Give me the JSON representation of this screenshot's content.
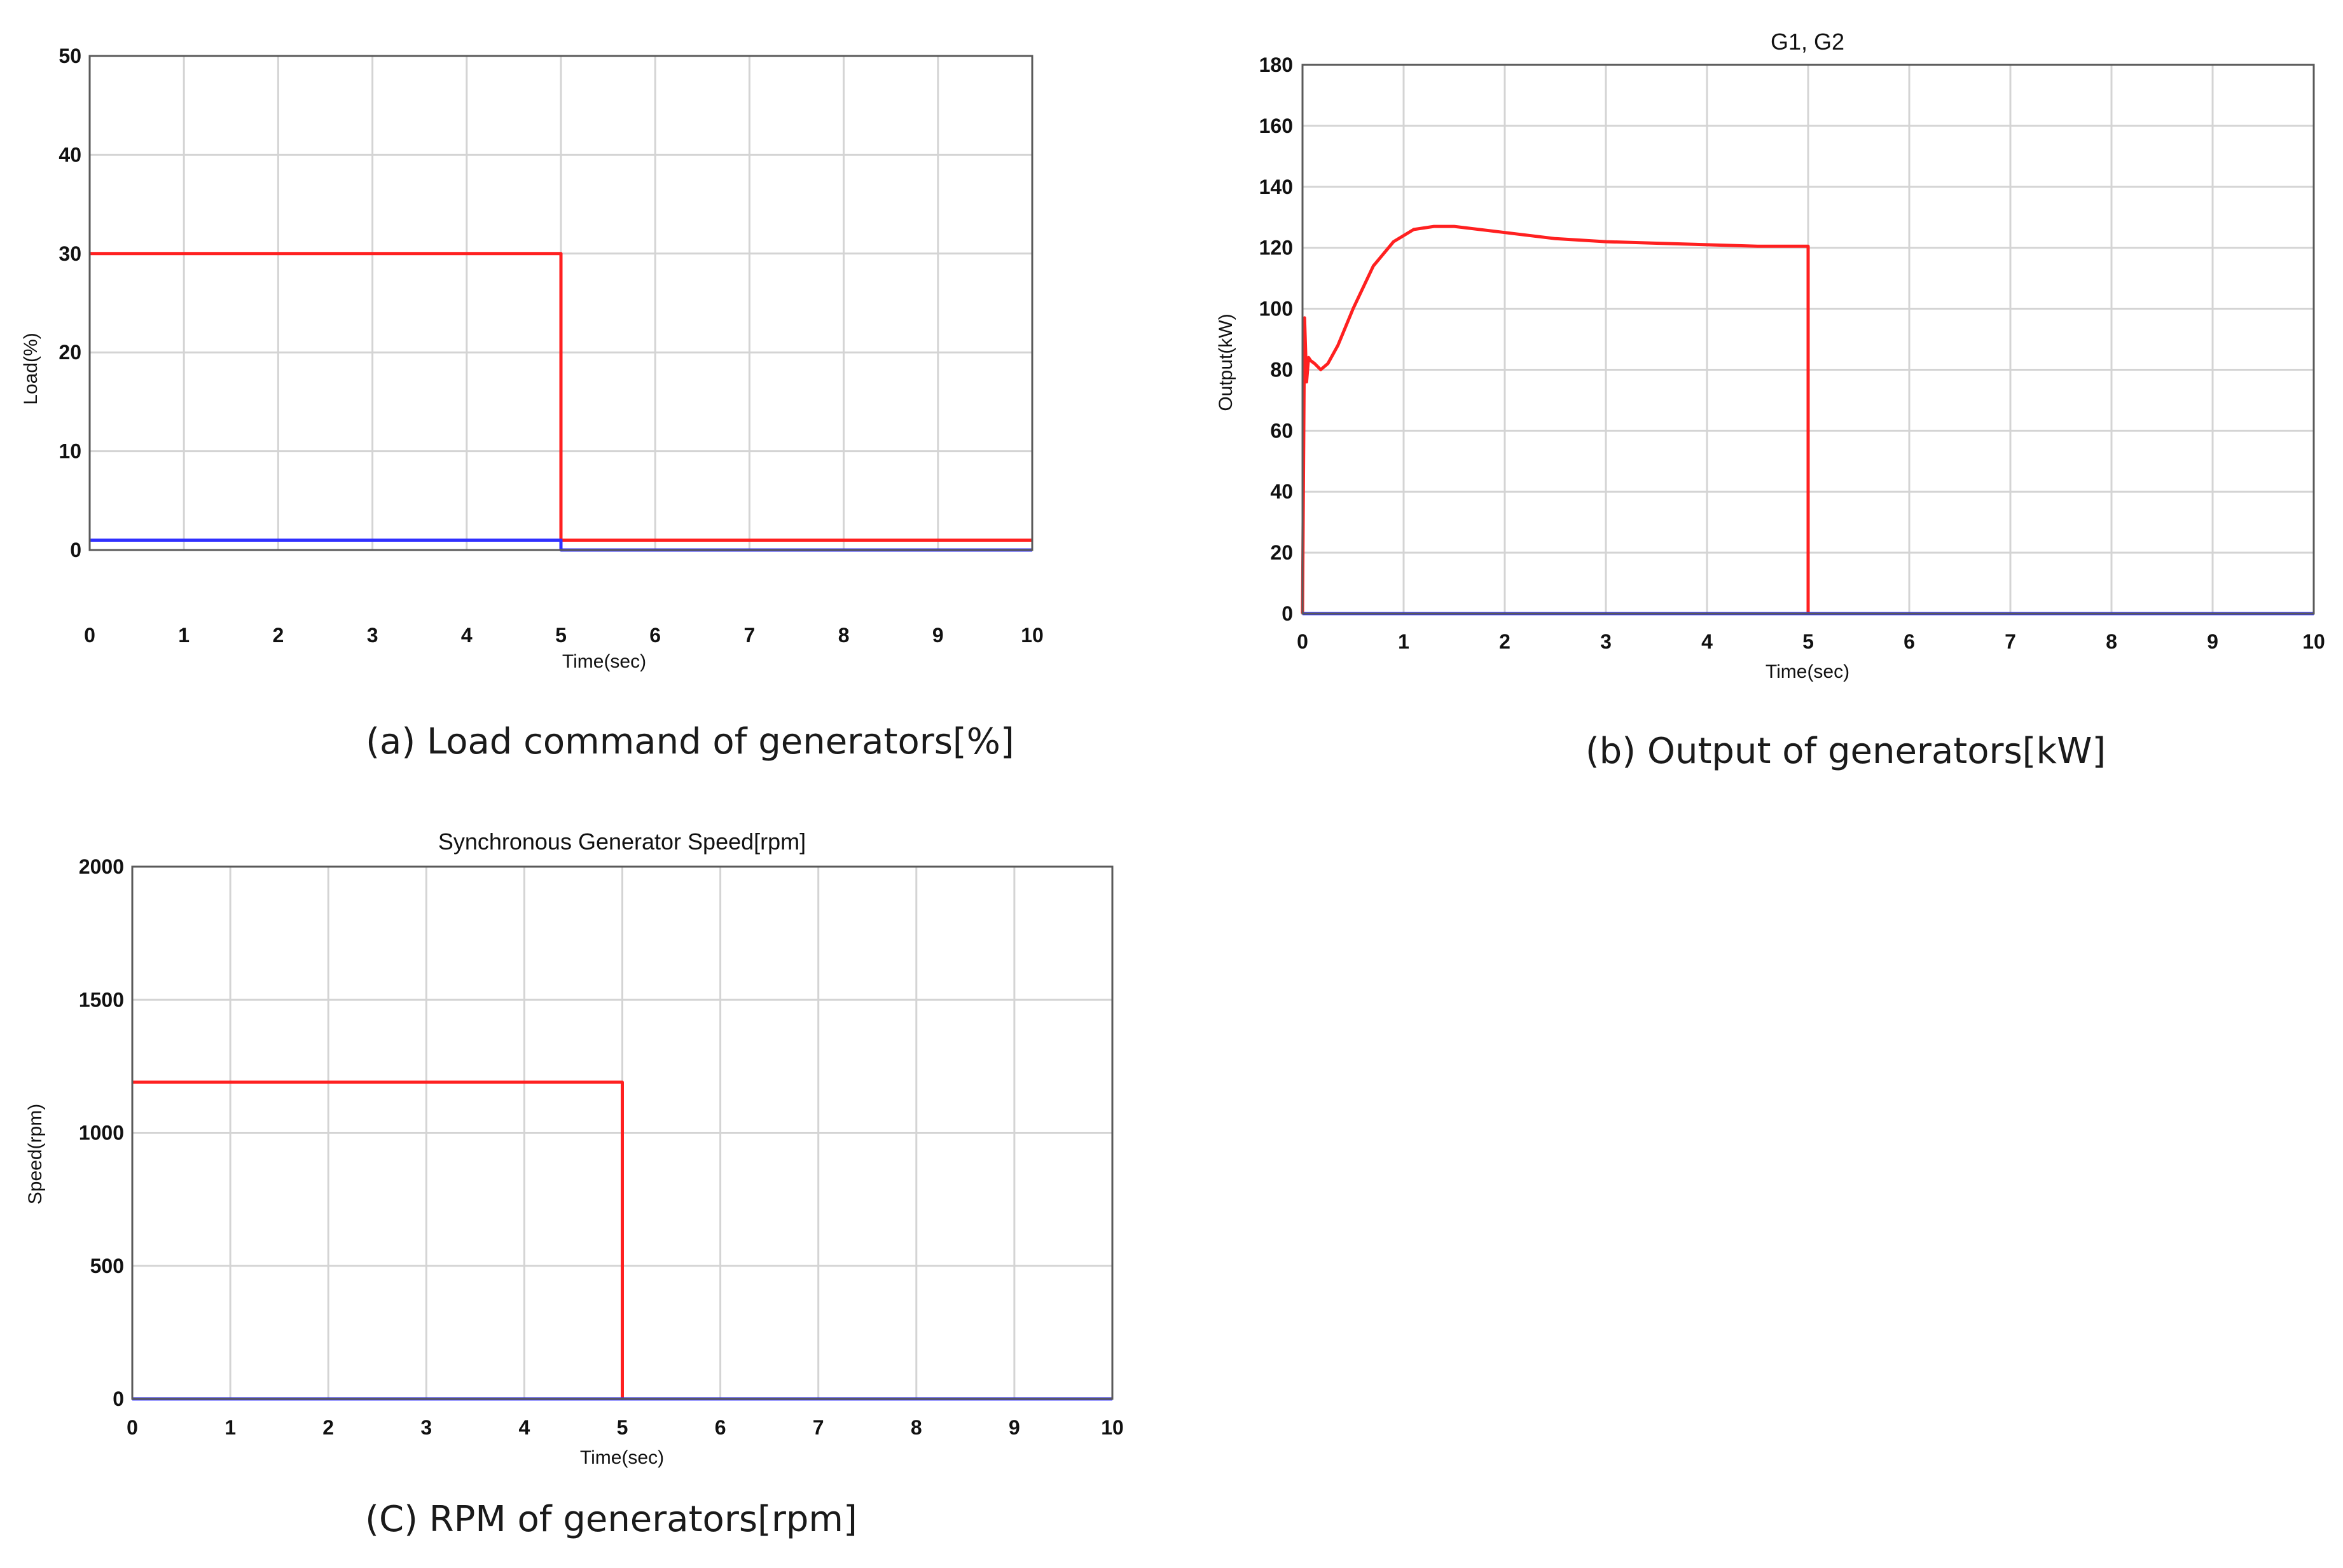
{
  "chart_data": [
    {
      "type": "line",
      "title": "",
      "caption": "(a) Load command of generators[%]",
      "xlabel": "Time(sec)",
      "ylabel": "Load(%)",
      "xlim": [
        0,
        10
      ],
      "ylim": [
        0,
        50
      ],
      "xticks": [
        0,
        1,
        2,
        3,
        4,
        5,
        6,
        7,
        8,
        9,
        10
      ],
      "yticks": [
        0,
        10,
        20,
        30,
        40,
        50
      ],
      "grid": true,
      "series": [
        {
          "color": "#ff2020",
          "x": [
            0,
            5,
            5,
            10
          ],
          "y": [
            30,
            30,
            1,
            1
          ]
        },
        {
          "color": "#3030ff",
          "x": [
            0,
            5,
            5,
            10
          ],
          "y": [
            1,
            1,
            0,
            0
          ]
        }
      ]
    },
    {
      "type": "line",
      "title": "G1, G2",
      "caption": "(b) Output of generators[kW]",
      "xlabel": "Time(sec)",
      "ylabel": "Output(kW)",
      "xlim": [
        0,
        10
      ],
      "ylim": [
        0,
        180
      ],
      "xticks": [
        0,
        1,
        2,
        3,
        4,
        5,
        6,
        7,
        8,
        9,
        10
      ],
      "yticks": [
        0,
        20,
        40,
        60,
        80,
        100,
        120,
        140,
        160,
        180
      ],
      "grid": true,
      "series": [
        {
          "color": "#ff2020",
          "x": [
            0,
            0.02,
            0.04,
            0.06,
            0.08,
            0.12,
            0.18,
            0.25,
            0.35,
            0.5,
            0.7,
            0.9,
            1.1,
            1.3,
            1.5,
            2.0,
            2.5,
            3.0,
            3.5,
            4.0,
            4.5,
            5.0,
            5.0,
            10
          ],
          "y": [
            0,
            97,
            76,
            84,
            83,
            82,
            80,
            82,
            88,
            100,
            114,
            122,
            126,
            127,
            127,
            125,
            123,
            122,
            121.5,
            121,
            120.5,
            120.5,
            0,
            0
          ]
        },
        {
          "color": "#3030ff",
          "x": [
            0,
            10
          ],
          "y": [
            0,
            0
          ]
        }
      ]
    },
    {
      "type": "line",
      "title": "Synchronous Generator Speed[rpm]",
      "caption": "(C) RPM of generators[rpm]",
      "xlabel": "Time(sec)",
      "ylabel": "Speed(rpm)",
      "xlim": [
        0,
        10
      ],
      "ylim": [
        0,
        2000
      ],
      "xticks": [
        0,
        1,
        2,
        3,
        4,
        5,
        6,
        7,
        8,
        9,
        10
      ],
      "yticks": [
        0,
        500,
        1000,
        1500,
        2000
      ],
      "grid": true,
      "series": [
        {
          "color": "#ff2020",
          "x": [
            0,
            5,
            5,
            10
          ],
          "y": [
            1190,
            1190,
            0,
            0
          ]
        },
        {
          "color": "#3030ff",
          "x": [
            0,
            10
          ],
          "y": [
            0,
            0
          ]
        }
      ]
    }
  ]
}
